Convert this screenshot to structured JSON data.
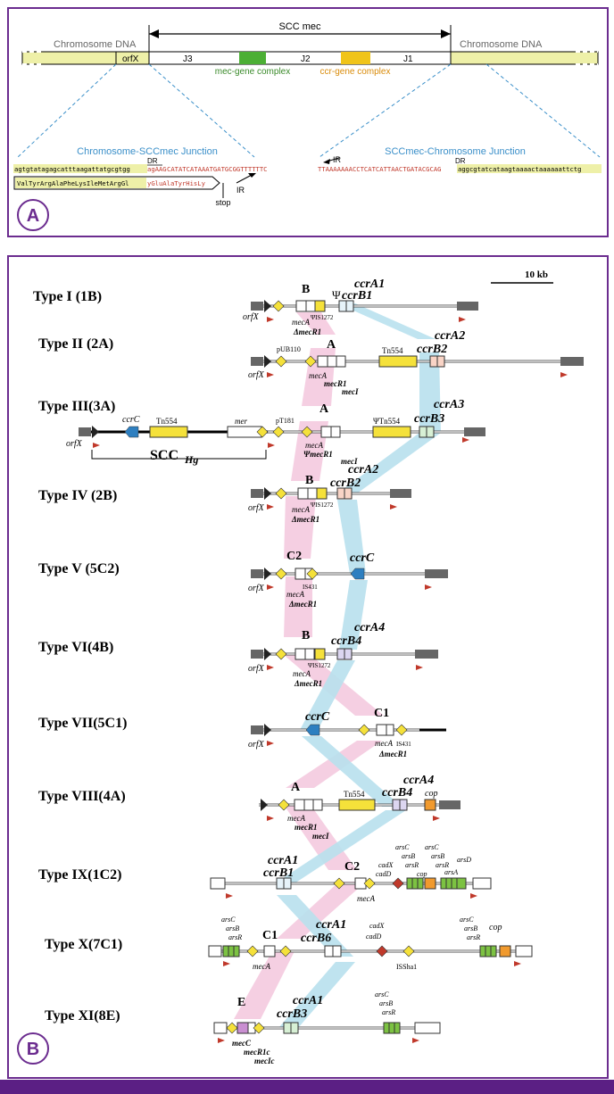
{
  "panel_a": {
    "badge": "A",
    "scc_label": "SCC mec",
    "chromosome_left": "Chromosome DNA",
    "chromosome_right": "Chromosome DNA",
    "orfx": "orfX",
    "j3": "J3",
    "j2": "J2",
    "j1": "J1",
    "mec_complex": "mec-gene complex",
    "ccr_complex": "ccr-gene complex",
    "left_junction_title": "Chromosome-SCCmec Junction",
    "right_junction_title": "SCCmec-Chromosome Junction",
    "dr_left": "DR",
    "dr_right": "DR",
    "ir_left": "IR",
    "ir_right": "IR",
    "seq_left_chrom": "agtgtatagagcatttaagattatgcgtgg",
    "seq_left_dr": "agAAG",
    "seq_left_ir": "CATATCATAAATGATGCGGTTTTTTC",
    "protein_left_a": "ValTyrArgAlaPheLysIleMetArgGl",
    "protein_left_b": "yGluAlaTyrHisLy",
    "stop": "stop",
    "seq_right_ir": "TTAAAAAAACCTCATCATTAACTGATACGCAG",
    "seq_right_chrom": "aggcgtatcataagtaaaactaaaaaattctg"
  },
  "panel_b": {
    "badge": "B",
    "scale": "10 kb",
    "types": [
      {
        "label": "Type I (1B)"
      },
      {
        "label": "Type II (2A)"
      },
      {
        "label": "Type III(3A)"
      },
      {
        "label": "Type IV (2B)"
      },
      {
        "label": "Type V (5C2)"
      },
      {
        "label": "Type VI(4B)"
      },
      {
        "label": "Type VII(5C1)"
      },
      {
        "label": "Type VIII(4A)"
      },
      {
        "label": "Type IX(1C2)"
      },
      {
        "label": "Type X(7C1)"
      },
      {
        "label": "Type XI(8E)"
      }
    ],
    "labels": {
      "t1_b": "B",
      "t1_ccra": "ccrA1",
      "t1_ccrb": "ccrB1",
      "t1_psi": "Ψ",
      "t1_is": "ΨIS1272",
      "t1_orfx": "orfX",
      "t1_meca": "mecA",
      "t1_mecr": "ΔmecR1",
      "t2_a": "A",
      "t2_pub": "pUB110",
      "t2_tn": "Tn554",
      "t2_ccra": "ccrA2",
      "t2_ccrb": "ccrB2",
      "t2_orfx": "orfX",
      "t2_meca": "mecA",
      "t2_mecr": "mecR1",
      "t2_meci": "mecI",
      "t3_a": "A",
      "t3_ccrc": "ccrC",
      "t3_tn": "Tn554",
      "t3_mer": "mer",
      "t3_pt": "pT181",
      "t3_psitn": "ΨTn554",
      "t3_ccra": "ccrA3",
      "t3_ccrb": "ccrB3",
      "t3_orfx": "orfX",
      "t3_scchg": "SCC",
      "t3_scchg_sub": "Hg",
      "t3_meca": "mecA",
      "t3_mecr": "ΨmecR1",
      "t3_meci": "mecI",
      "t4_b": "B",
      "t4_ccra": "ccrA2",
      "t4_ccrb": "ccrB2",
      "t4_is": "ΨIS1272",
      "t4_orfx": "orfX",
      "t4_meca": "mecA",
      "t4_mecr": "ΔmecR1",
      "t5_c2": "C2",
      "t5_ccrc": "ccrC",
      "t5_is": "IS431",
      "t5_orfx": "orfX",
      "t5_meca": "mecA",
      "t5_mecr": "ΔmecR1",
      "t6_b": "B",
      "t6_ccra": "ccrA4",
      "t6_ccrb": "ccrB4",
      "t6_is": "ΨIS1272",
      "t6_orfx": "orfX",
      "t6_meca": "mecA",
      "t6_mecr": "ΔmecR1",
      "t7_ccrc": "ccrC",
      "t7_c1": "C1",
      "t7_orfx": "orfX",
      "t7_meca": "mecA",
      "t7_is": "IS431",
      "t7_mecr": "ΔmecR1",
      "t8_a": "A",
      "t8_tn": "Tn554",
      "t8_ccra": "ccrA4",
      "t8_ccrb": "ccrB4",
      "t8_cop": "cop",
      "t8_meca": "mecA",
      "t8_mecr": "mecR1",
      "t8_meci": "mecI",
      "t9_ccra": "ccrA1",
      "t9_ccrb": "ccrB1",
      "t9_c2": "C2",
      "t9_meca": "mecA",
      "t9_cadx": "cadX",
      "t9_cadd": "cadD",
      "t9_arsc1": "arsC",
      "t9_arsb1": "arsB",
      "t9_arsr1": "arsR",
      "t9_cop": "cop",
      "t9_arsc2": "arsC",
      "t9_arsb2": "arsB",
      "t9_arsr2": "arsR",
      "t9_arsd": "arsD",
      "t9_arsa": "arsA",
      "t10_arsc1": "arsC",
      "t10_arsb1": "arsB",
      "t10_arsr1": "arsR",
      "t10_c1": "C1",
      "t10_ccra": "ccrA1",
      "t10_ccrb": "ccrB6",
      "t10_cadx": "cadX",
      "t10_cadd": "cadD",
      "t10_isha": "ISSha1",
      "t10_meca": "mecA",
      "t10_arsc2": "arsC",
      "t10_arsb2": "arsB",
      "t10_arsr2": "arsR",
      "t10_cop": "cop",
      "t11_e": "E",
      "t11_ccra": "ccrA1",
      "t11_ccrb": "ccrB3",
      "t11_arsc": "arsC",
      "t11_arsb": "arsB",
      "t11_arsr": "arsR",
      "t11_mecc": "mecC",
      "t11_mecr": "mecR1c",
      "t11_meci": "mecIc"
    }
  },
  "colors": {
    "frame": "#6b2c8f",
    "bottom_bar": "#5b1f84",
    "mec_green": "#4caf35",
    "ccr_yellow": "#f0c419",
    "chrom_fill": "#eef0a8",
    "junction_blue": "#3a8fc9",
    "band_pink": "#f4c7dd",
    "band_blue": "#b9e1ee",
    "ccrc_blue": "#2e7fc0",
    "gene_yellow": "#f5e13a",
    "arrow_red": "#c0392b",
    "cop_orange": "#f19a2e",
    "ars_green": "#7cc242"
  }
}
